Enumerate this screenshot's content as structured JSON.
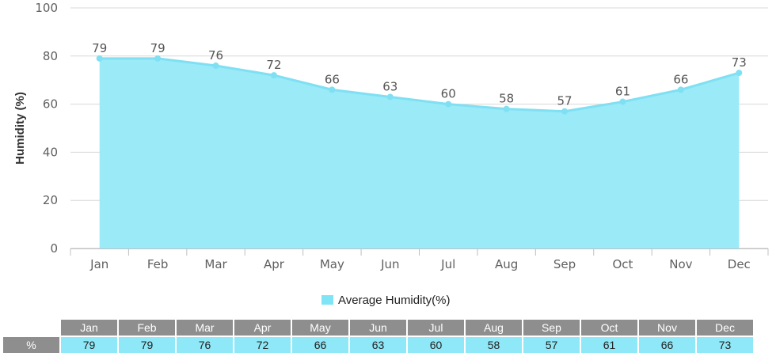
{
  "chart_data": {
    "type": "area",
    "categories": [
      "Jan",
      "Feb",
      "Mar",
      "Apr",
      "May",
      "Jun",
      "Jul",
      "Aug",
      "Sep",
      "Oct",
      "Nov",
      "Dec"
    ],
    "series": [
      {
        "name": "Average Humidity(%)",
        "values": [
          79,
          79,
          76,
          72,
          66,
          63,
          60,
          58,
          57,
          61,
          66,
          73
        ]
      }
    ],
    "ylabel": "Humidity (%)",
    "ylim": [
      0,
      100
    ],
    "yticks": [
      0,
      20,
      40,
      60,
      80,
      100
    ],
    "grid": true,
    "legend": "bottom-center",
    "colors": {
      "fill": "#9aeaf8",
      "line": "#7fe0f3",
      "point": "#7fe0f3"
    }
  },
  "table": {
    "row_label": "%"
  }
}
